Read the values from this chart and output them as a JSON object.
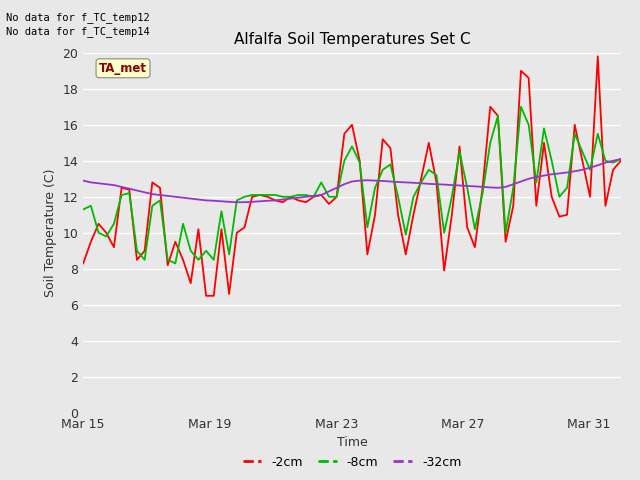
{
  "title": "Alfalfa Soil Temperatures Set C",
  "xlabel": "Time",
  "ylabel": "Soil Temperature (C)",
  "no_data_text": [
    "No data for f_TC_temp12",
    "No data for f_TC_temp14"
  ],
  "ta_met_label": "TA_met",
  "legend_labels": [
    "-2cm",
    "-8cm",
    "-32cm"
  ],
  "legend_colors": [
    "#ff0000",
    "#00bb00",
    "#9933cc"
  ],
  "ylim": [
    0,
    20
  ],
  "yticks": [
    0,
    2,
    4,
    6,
    8,
    10,
    12,
    14,
    16,
    18,
    20
  ],
  "bg_color": "#e8e8e8",
  "grid_color": "#ffffff",
  "x_tick_labels": [
    "Mar 15",
    "Mar 19",
    "Mar 23",
    "Mar 27",
    "Mar 31"
  ],
  "x_tick_positions": [
    0,
    4,
    8,
    12,
    16
  ],
  "total_days": 17,
  "red_2cm": [
    8.3,
    9.5,
    10.5,
    10.0,
    9.2,
    12.5,
    12.4,
    8.5,
    9.0,
    12.8,
    12.5,
    8.2,
    9.5,
    8.5,
    7.2,
    10.2,
    6.5,
    6.5,
    10.2,
    6.6,
    10.0,
    10.3,
    12.0,
    12.1,
    12.0,
    11.8,
    11.7,
    12.0,
    11.8,
    11.7,
    12.0,
    12.1,
    11.6,
    12.0,
    15.5,
    16.0,
    14.0,
    8.8,
    11.0,
    15.2,
    14.7,
    11.0,
    8.8,
    11.0,
    13.0,
    15.0,
    12.8,
    7.9,
    11.0,
    14.8,
    10.3,
    9.2,
    12.5,
    17.0,
    16.5,
    9.5,
    11.5,
    19.0,
    18.6,
    11.5,
    15.0,
    12.0,
    10.9,
    11.0,
    16.0,
    14.0,
    12.0,
    19.8,
    11.5,
    13.5,
    14.0
  ],
  "green_8cm": [
    11.3,
    11.5,
    10.0,
    9.8,
    10.5,
    12.1,
    12.2,
    9.0,
    8.5,
    11.5,
    11.8,
    8.5,
    8.3,
    10.5,
    9.0,
    8.5,
    9.0,
    8.5,
    11.2,
    8.8,
    11.8,
    12.0,
    12.1,
    12.1,
    12.1,
    12.1,
    12.0,
    12.0,
    12.1,
    12.1,
    12.0,
    12.8,
    12.0,
    12.0,
    14.0,
    14.8,
    13.9,
    10.3,
    12.5,
    13.5,
    13.8,
    12.0,
    9.9,
    12.0,
    12.8,
    13.5,
    13.2,
    10.0,
    12.0,
    14.5,
    12.5,
    10.2,
    12.2,
    15.0,
    16.5,
    10.0,
    12.5,
    17.0,
    16.0,
    12.8,
    15.8,
    14.0,
    12.0,
    12.5,
    15.5,
    14.5,
    13.5,
    15.5,
    14.0,
    13.9,
    14.1
  ],
  "purple_32cm": [
    12.9,
    12.8,
    12.75,
    12.7,
    12.65,
    12.55,
    12.45,
    12.35,
    12.25,
    12.15,
    12.1,
    12.05,
    12.0,
    11.95,
    11.9,
    11.85,
    11.8,
    11.78,
    11.75,
    11.72,
    11.7,
    11.7,
    11.72,
    11.75,
    11.78,
    11.8,
    11.85,
    11.9,
    11.95,
    12.0,
    12.05,
    12.1,
    12.3,
    12.5,
    12.7,
    12.85,
    12.9,
    12.92,
    12.9,
    12.88,
    12.85,
    12.82,
    12.8,
    12.78,
    12.75,
    12.72,
    12.7,
    12.68,
    12.65,
    12.63,
    12.6,
    12.58,
    12.55,
    12.52,
    12.5,
    12.55,
    12.7,
    12.85,
    13.0,
    13.1,
    13.18,
    13.25,
    13.3,
    13.35,
    13.42,
    13.5,
    13.62,
    13.75,
    13.9,
    14.0,
    14.1
  ]
}
